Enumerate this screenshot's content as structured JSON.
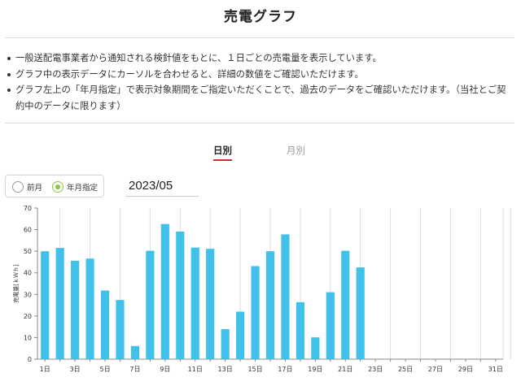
{
  "page": {
    "title": "売電グラフ",
    "notes": [
      "一般送配電事業者から通知される検針値をもとに、１日ごとの売電量を表示しています。",
      "グラフ中の表示データにカーソルを合わせると、詳細の数値をご確認いただけます。",
      "グラフ左上の「年月指定」で表示対象期間をご指定いただくことで、過去のデータをご確認いただけます。（当社とご契約中のデータに限ります）"
    ]
  },
  "tabs": {
    "daily": "日別",
    "monthly": "月別",
    "active": "daily"
  },
  "period_selector": {
    "previous_month_label": "前月",
    "year_month_label": "年月指定",
    "selected": "year_month",
    "year_month_value": "2023/05"
  },
  "colors": {
    "bar": "#3fc1ea",
    "accent": "#d7282f",
    "radio": "#8cc63f",
    "grid": "#dddddd"
  },
  "chart_data": {
    "type": "bar",
    "ylabel": "売電量[ｋＷｈ]",
    "ylim": [
      0,
      70
    ],
    "yticks": [
      0,
      10,
      20,
      30,
      40,
      50,
      60,
      70
    ],
    "grid": "vertical",
    "categories": [
      "1日",
      "2日",
      "3日",
      "4日",
      "5日",
      "6日",
      "7日",
      "8日",
      "9日",
      "10日",
      "11日",
      "12日",
      "13日",
      "14日",
      "15日",
      "16日",
      "17日",
      "18日",
      "19日",
      "20日",
      "21日",
      "22日",
      "23日",
      "24日",
      "25日",
      "26日",
      "27日",
      "28日",
      "29日",
      "30日",
      "31日"
    ],
    "xtick_labels": [
      "1日",
      "3日",
      "5日",
      "7日",
      "9日",
      "11日",
      "13日",
      "15日",
      "17日",
      "19日",
      "21日",
      "23日",
      "25日",
      "27日",
      "29日",
      "31日"
    ],
    "values": [
      50.0,
      51.5,
      45.6,
      46.6,
      31.8,
      27.4,
      6.1,
      50.2,
      62.6,
      59.1,
      51.7,
      51.1,
      13.9,
      22.0,
      43.1,
      50.0,
      57.8,
      26.4,
      10.1,
      31.0,
      50.2,
      42.5,
      null,
      null,
      null,
      null,
      null,
      null,
      null,
      null,
      null
    ]
  }
}
